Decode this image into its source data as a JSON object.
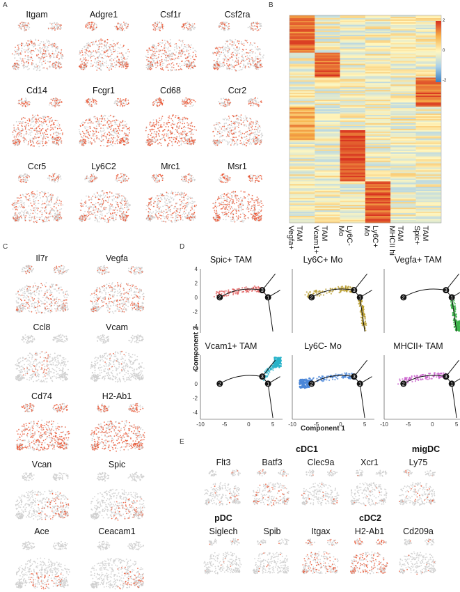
{
  "panels": {
    "A": "A",
    "B": "B",
    "C": "C",
    "D": "D",
    "E": "E"
  },
  "panel_a": {
    "genes": [
      "Itgam",
      "Adgre1",
      "Csf1r",
      "Csf2ra",
      "Cd14",
      "Fcgr1",
      "Cd68",
      "Ccr2",
      "Ccr5",
      "Ly6C2",
      "Mrc1",
      "Msr1"
    ]
  },
  "panel_c": {
    "genes": [
      "Il7r",
      "Vegfa",
      "Ccl8",
      "Vcam",
      "Cd74",
      "H2-Ab1",
      "Vcan",
      "Spic",
      "Ace",
      "Ceacam1"
    ]
  },
  "panel_e": {
    "genes": [
      "Flt3",
      "Batf3",
      "Clec9a",
      "Xcr1",
      "Ly75",
      "Siglech",
      "Spib",
      "Itgax",
      "H2-Ab1",
      "Cd209a"
    ],
    "groups": {
      "cdc1": "cDC1",
      "migdc": "migDC",
      "pdc": "pDC",
      "cdc2": "cDC2"
    }
  },
  "panel_b": {
    "columns": [
      "TAM\nVegfa+",
      "TAM\nVcam1+",
      "Ly6C-\nMo",
      "Ly6C+\nMo",
      "TAM\nMHCII hi",
      "TAM\nSpic+"
    ],
    "scale": {
      "max": "2",
      "mid": "0",
      "min": "-2"
    },
    "colors": {
      "high": "#d7301f",
      "mid": "#fff7c0",
      "low": "#3a7fc0"
    }
  },
  "panel_d": {
    "titles": [
      "Spic+ TAM",
      "Ly6C+ Mo",
      "Vegfa+ TAM",
      "Vcam1+ TAM",
      "Ly6C- Mo",
      "MHCII+ TAM"
    ],
    "colors": [
      "#e05a5a",
      "#b59a2a",
      "#3cb44b",
      "#29b3c9",
      "#4a86d8",
      "#c75ac9"
    ],
    "y_ticks": [
      "4",
      "2",
      "0",
      "-2",
      "-4"
    ],
    "x_ticks": [
      "-10",
      "-5",
      "0",
      "5"
    ],
    "xlabel": "Component 1",
    "ylabel": "Component 2",
    "nodes": [
      "1",
      "2",
      "3"
    ],
    "ylim": [
      -5,
      4
    ],
    "xlim": [
      -10,
      7
    ]
  }
}
